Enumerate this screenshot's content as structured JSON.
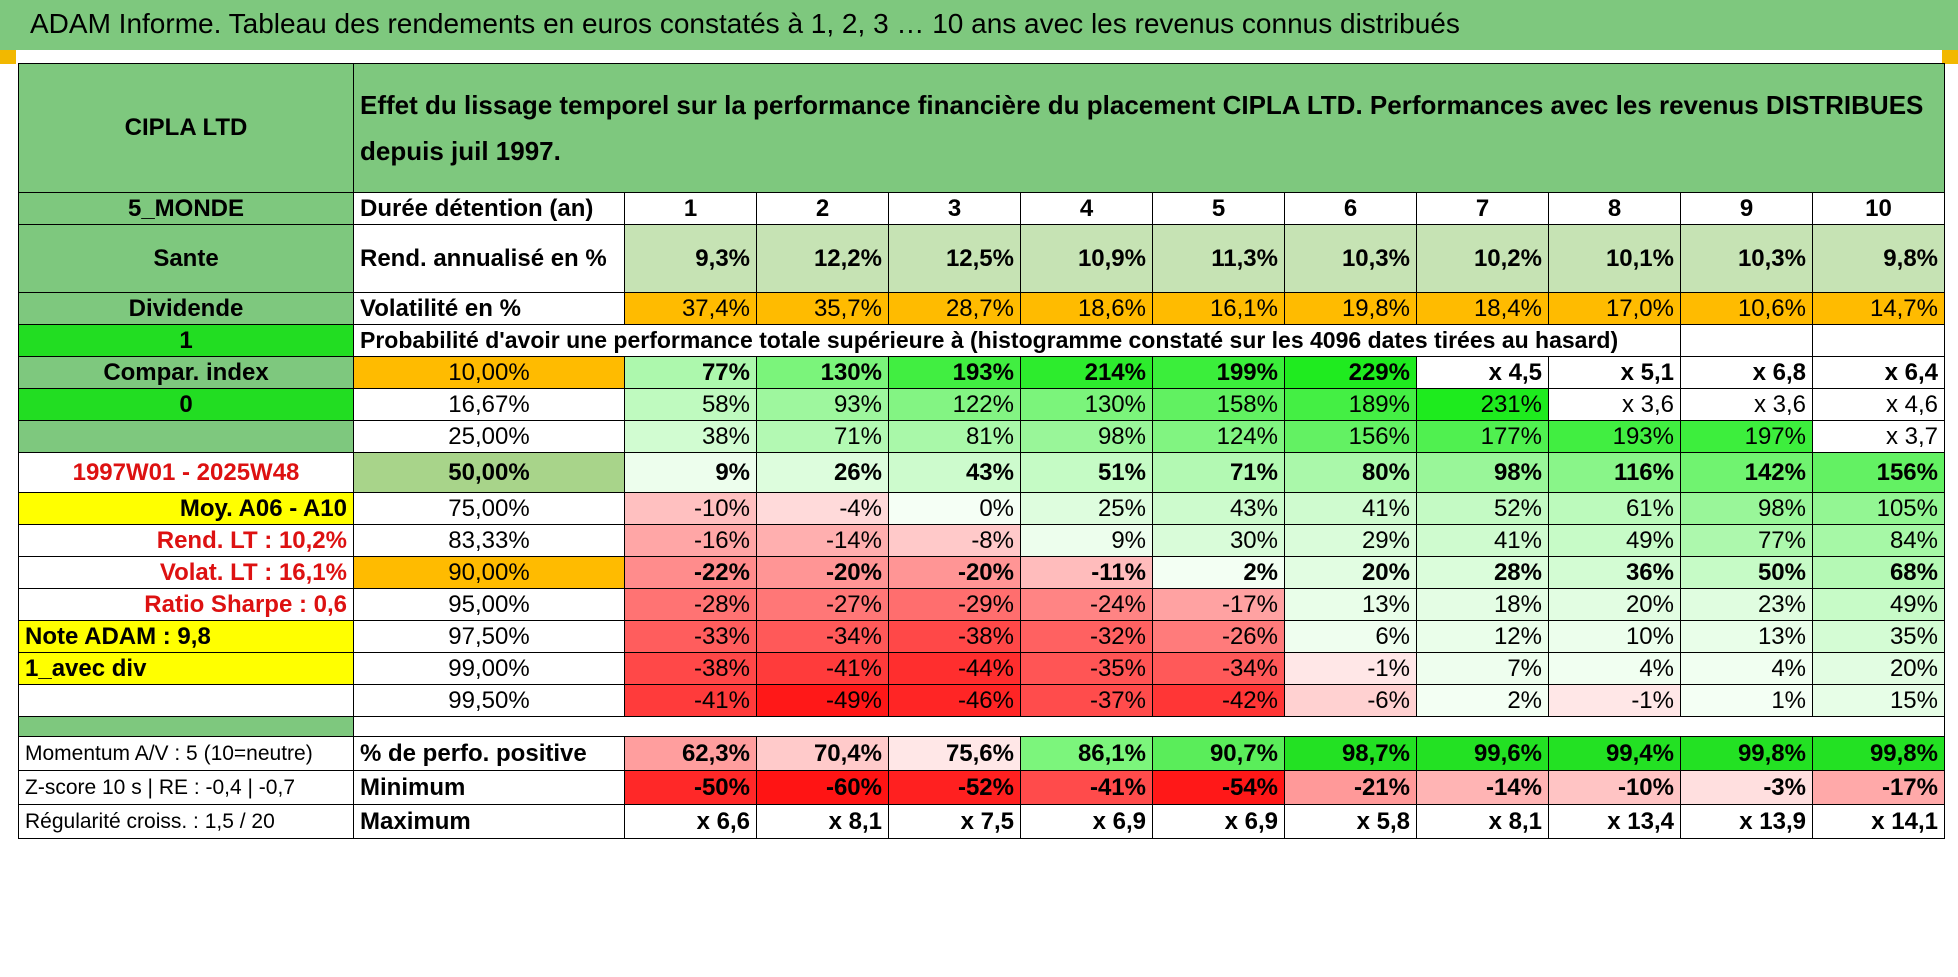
{
  "title": "ADAM Informe. Tableau des rendements en euros constatés à 1, 2, 3 … 10 ans avec les revenus connus distribués",
  "colors": {
    "header_green": "#7ec87e",
    "bright_green": "#22dd22",
    "yellow": "#ffff00",
    "orange": "#ffbb00",
    "red_text": "#dd1111"
  },
  "header": {
    "asset": "CIPLA LTD",
    "description": "Effet du lissage temporel sur la performance financière du placement CIPLA LTD. Performances avec les revenus DISTRIBUES depuis juil 1997."
  },
  "left": {
    "zone": "5_MONDE",
    "sector": "Sante",
    "type": "Dividende",
    "flag1": "1",
    "compar": "Compar. index",
    "flag0": "0",
    "period": "1997W01 - 2025W48",
    "moy": "Moy. A06 - A10",
    "rend_lt": "Rend. LT :    10,2%",
    "volat_lt": "Volat. LT :    16,1%",
    "sharpe": "Ratio Sharpe :     0,6",
    "note": "Note ADAM : 9,8",
    "avec_div": "1_avec div",
    "momentum": "Momentum A/V : 5 (10=neutre)",
    "zscore": "Z-score 10 s | RE : -0,4 | -0,7",
    "regularite": "Régularité croiss. : 1,5 / 20"
  },
  "row_labels": {
    "duree": "Durée détention (an)",
    "rend": "Rend. annualisé en %",
    "vol": "Volatilité en %",
    "proba": "Probabilité d'avoir une performance totale supérieure à (histogramme constaté sur les 4096 dates tirées au hasard)",
    "pos": "% de perfo. positive",
    "min": "Minimum",
    "max": "Maximum"
  },
  "years": [
    "1",
    "2",
    "3",
    "4",
    "5",
    "6",
    "7",
    "8",
    "9",
    "10"
  ],
  "rend": [
    "9,3%",
    "12,2%",
    "12,5%",
    "10,9%",
    "11,3%",
    "10,3%",
    "10,2%",
    "10,1%",
    "10,3%",
    "9,8%"
  ],
  "vol": [
    "37,4%",
    "35,7%",
    "28,7%",
    "18,6%",
    "16,1%",
    "19,8%",
    "18,4%",
    "17,0%",
    "10,6%",
    "14,7%"
  ],
  "quantiles": [
    {
      "p": "10,00%",
      "v": [
        "77%",
        "130%",
        "193%",
        "214%",
        "199%",
        "229%",
        "x 4,5",
        "x 5,1",
        "x 6,8",
        "x 6,4"
      ]
    },
    {
      "p": "16,67%",
      "v": [
        "58%",
        "93%",
        "122%",
        "130%",
        "158%",
        "189%",
        "231%",
        "x 3,6",
        "x 3,6",
        "x 4,6"
      ]
    },
    {
      "p": "25,00%",
      "v": [
        "38%",
        "71%",
        "81%",
        "98%",
        "124%",
        "156%",
        "177%",
        "193%",
        "197%",
        "x 3,7"
      ]
    },
    {
      "p": "50,00%",
      "v": [
        "9%",
        "26%",
        "43%",
        "51%",
        "71%",
        "80%",
        "98%",
        "116%",
        "142%",
        "156%"
      ]
    },
    {
      "p": "75,00%",
      "v": [
        "-10%",
        "-4%",
        "0%",
        "25%",
        "43%",
        "41%",
        "52%",
        "61%",
        "98%",
        "105%"
      ]
    },
    {
      "p": "83,33%",
      "v": [
        "-16%",
        "-14%",
        "-8%",
        "9%",
        "30%",
        "29%",
        "41%",
        "49%",
        "77%",
        "84%"
      ]
    },
    {
      "p": "90,00%",
      "v": [
        "-22%",
        "-20%",
        "-20%",
        "-11%",
        "2%",
        "20%",
        "28%",
        "36%",
        "50%",
        "68%"
      ]
    },
    {
      "p": "95,00%",
      "v": [
        "-28%",
        "-27%",
        "-29%",
        "-24%",
        "-17%",
        "13%",
        "18%",
        "20%",
        "23%",
        "49%"
      ]
    },
    {
      "p": "97,50%",
      "v": [
        "-33%",
        "-34%",
        "-38%",
        "-32%",
        "-26%",
        "6%",
        "12%",
        "10%",
        "13%",
        "35%"
      ]
    },
    {
      "p": "99,00%",
      "v": [
        "-38%",
        "-41%",
        "-44%",
        "-35%",
        "-34%",
        "-1%",
        "7%",
        "4%",
        "4%",
        "20%"
      ]
    },
    {
      "p": "99,50%",
      "v": [
        "-41%",
        "-49%",
        "-46%",
        "-37%",
        "-42%",
        "-6%",
        "2%",
        "-1%",
        "1%",
        "15%"
      ]
    }
  ],
  "pos": [
    "62,3%",
    "70,4%",
    "75,6%",
    "86,1%",
    "90,7%",
    "98,7%",
    "99,6%",
    "99,4%",
    "99,8%",
    "99,8%"
  ],
  "min": [
    "-50%",
    "-60%",
    "-52%",
    "-41%",
    "-54%",
    "-21%",
    "-14%",
    "-10%",
    "-3%",
    "-17%"
  ],
  "max": [
    "x 6,6",
    "x 8,1",
    "x 7,5",
    "x 6,9",
    "x 6,9",
    "x 5,8",
    "x 8,1",
    "x 13,4",
    "x 13,9",
    "x 14,1"
  ]
}
